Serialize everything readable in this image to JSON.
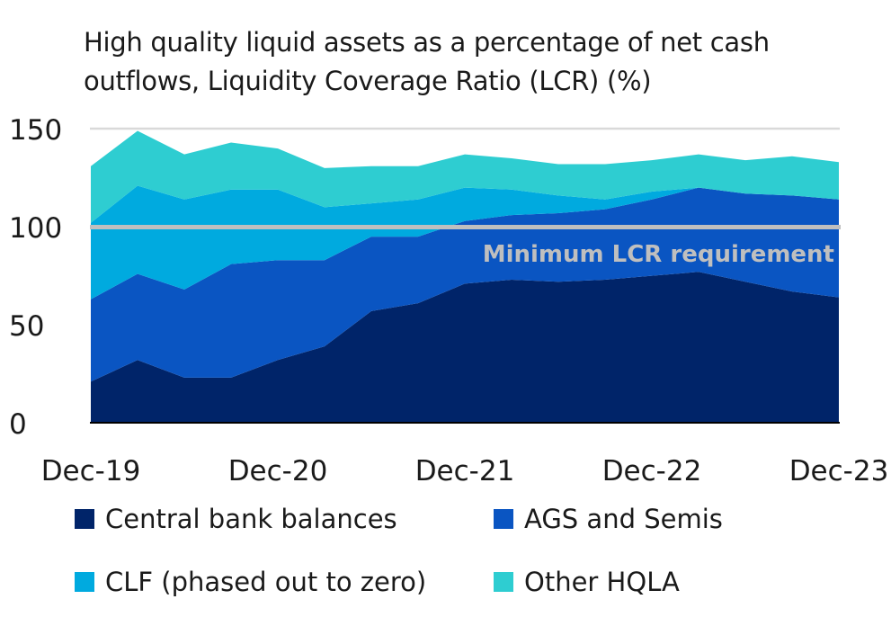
{
  "chart_data": {
    "type": "area",
    "stacked": true,
    "title": "High quality liquid assets as a percentage of net cash outflows, Liquidity Coverage Ratio (LCR) (%)",
    "xlabel": "",
    "ylabel": "",
    "x": [
      "Dec-19",
      "Mar-20",
      "Jun-20",
      "Sep-20",
      "Dec-20",
      "Mar-21",
      "Jun-21",
      "Sep-21",
      "Dec-21",
      "Mar-22",
      "Jun-22",
      "Sep-22",
      "Dec-22",
      "Mar-23",
      "Jun-23",
      "Sep-23",
      "Dec-23"
    ],
    "x_tick_labels": [
      "Dec-19",
      "Dec-20",
      "Dec-21",
      "Dec-22",
      "Dec-23"
    ],
    "y_tick_labels": [
      "0",
      "50",
      "100",
      "150"
    ],
    "ylim": [
      0,
      150
    ],
    "grid": "horizontal at 150 only",
    "legend_position": "bottom",
    "series": [
      {
        "name": "Central bank balances",
        "color": "#002469",
        "values": [
          21,
          32,
          23,
          23,
          32,
          39,
          57,
          61,
          71,
          73,
          72,
          73,
          75,
          77,
          72,
          67,
          64
        ]
      },
      {
        "name": "AGS and Semis",
        "color": "#0a55c2",
        "values": [
          42,
          44,
          45,
          58,
          51,
          44,
          38,
          34,
          32,
          33,
          35,
          36,
          39,
          43,
          45,
          49,
          50
        ]
      },
      {
        "name": "CLF (phased out to zero)",
        "color": "#00aadf",
        "values": [
          39,
          45,
          46,
          38,
          36,
          27,
          17,
          19,
          17,
          13,
          9,
          5,
          4,
          0,
          0,
          0,
          0
        ]
      },
      {
        "name": "Other HQLA",
        "color": "#2ecdd1",
        "values": [
          29,
          28,
          23,
          24,
          21,
          20,
          19,
          17,
          17,
          16,
          16,
          18,
          16,
          17,
          17,
          20,
          19
        ]
      }
    ],
    "reference_line": {
      "value": 100,
      "label": "Minimum LCR requirement",
      "color": "#bfbfbf"
    }
  }
}
